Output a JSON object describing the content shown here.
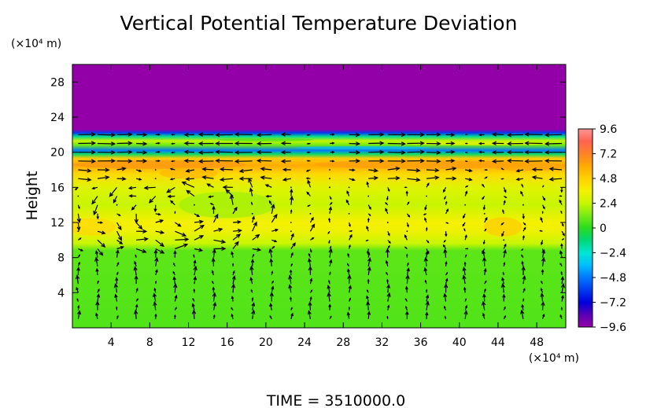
{
  "chart_data": {
    "type": "heatmap",
    "title": "Vertical Potential Temperature Deviation",
    "ylabel": "Height",
    "y_unit": "(×10⁴ m)",
    "x_unit": "(×10⁴ m)",
    "footer": "TIME  =  3510000.0",
    "xlim": [
      0,
      51
    ],
    "ylim": [
      0,
      30
    ],
    "x_ticks": [
      "4",
      "8",
      "12",
      "16",
      "20",
      "24",
      "28",
      "32",
      "36",
      "40",
      "44",
      "48"
    ],
    "x_tick_values": [
      4,
      8,
      12,
      16,
      20,
      24,
      28,
      32,
      36,
      40,
      44,
      48
    ],
    "y_ticks": [
      "4",
      "8",
      "12",
      "16",
      "20",
      "24",
      "28"
    ],
    "y_tick_values": [
      4,
      8,
      12,
      16,
      20,
      24,
      28
    ],
    "colorbar": {
      "labels": [
        "9.6",
        "7.2",
        "4.8",
        "2.4",
        "0",
        "−2.4",
        "−4.8",
        "−7.2",
        "−9.6"
      ],
      "values": [
        9.6,
        7.2,
        4.8,
        2.4,
        0,
        -2.4,
        -4.8,
        -7.2,
        -9.6
      ],
      "range": [
        -9.6,
        9.6
      ]
    },
    "field_profile": [
      {
        "height": 0.0,
        "value": 0.6
      },
      {
        "height": 8.8,
        "value": 0.8
      },
      {
        "height": 9.6,
        "value": 2.4
      },
      {
        "height": 11.0,
        "value": 3.4
      },
      {
        "height": 12.0,
        "value": 3.6
      },
      {
        "height": 14.0,
        "value": 2.4
      },
      {
        "height": 16.0,
        "value": 3.0
      },
      {
        "height": 17.5,
        "value": 4.5
      },
      {
        "height": 18.5,
        "value": 6.0
      },
      {
        "height": 19.3,
        "value": 5.0
      },
      {
        "height": 19.8,
        "value": -1.0
      },
      {
        "height": 20.2,
        "value": -4.8
      },
      {
        "height": 20.8,
        "value": 1.0
      },
      {
        "height": 21.3,
        "value": 2.4
      },
      {
        "height": 21.8,
        "value": -1.5
      },
      {
        "height": 22.2,
        "value": -6.0
      },
      {
        "height": 22.6,
        "value": -9.6
      },
      {
        "height": 30.0,
        "value": -9.6
      }
    ],
    "colors": {
      "field_top": "#9400a8",
      "field_green": "#33dd22",
      "field_yellow": "#f2f000",
      "field_orange": "#ffb000",
      "field_blue": "#0044ee",
      "arrow": "#000000"
    },
    "vector_field": "wind vectors on a regular grid, strongest near heights 12–19"
  }
}
